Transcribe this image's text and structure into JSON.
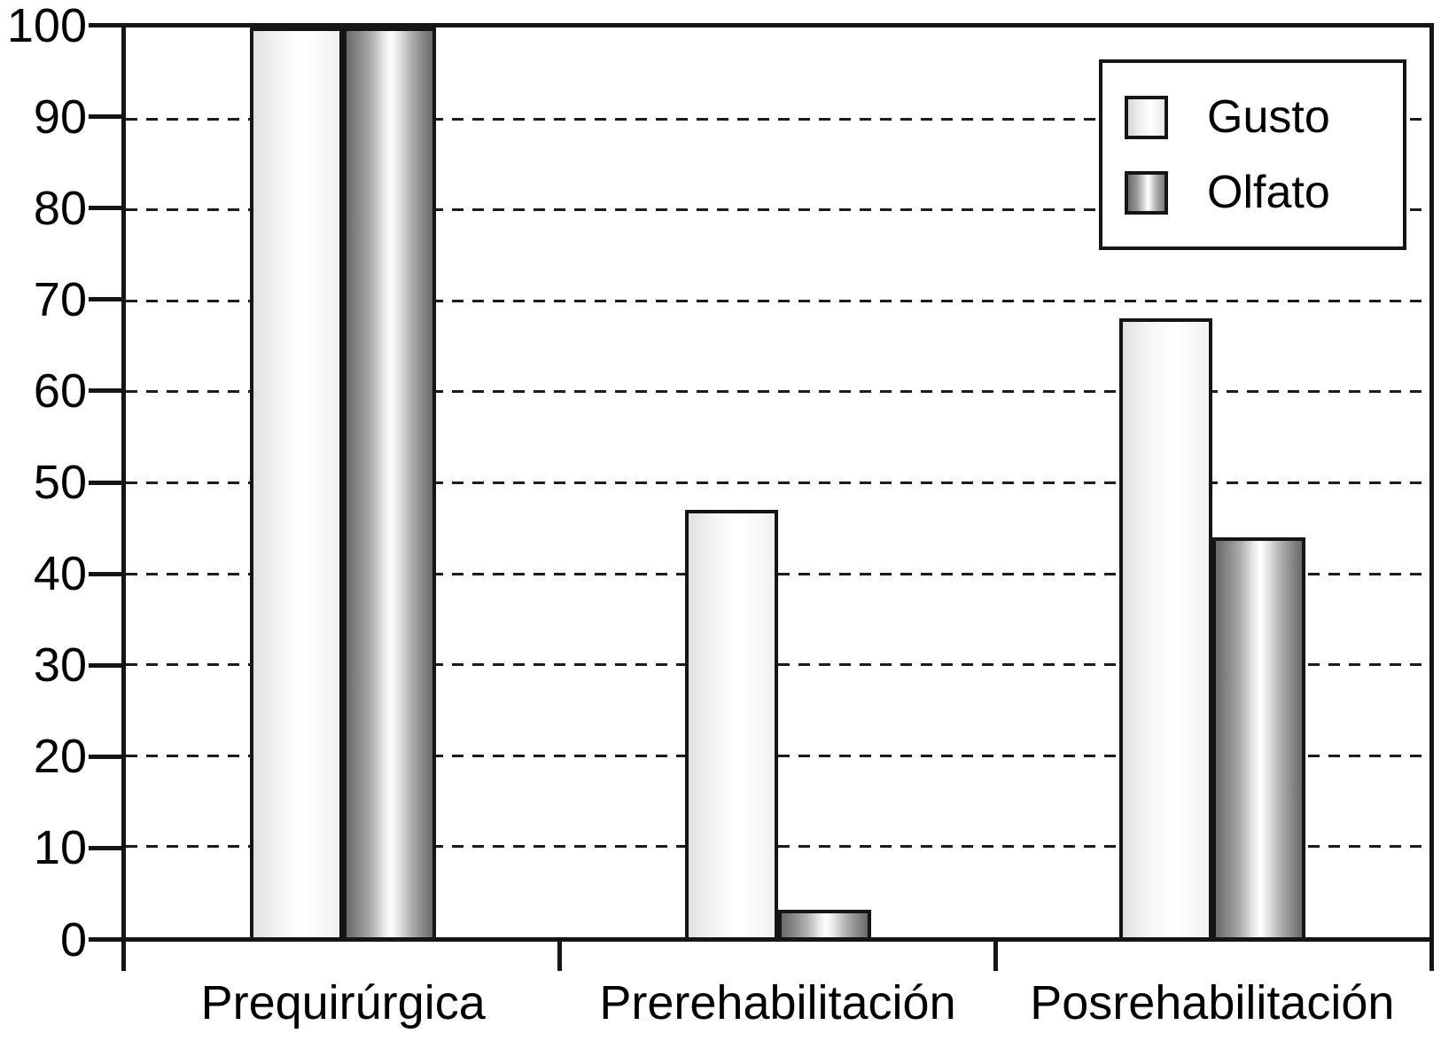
{
  "chart_data": {
    "type": "bar",
    "title": "",
    "xlabel": "",
    "ylabel": "",
    "categories": [
      "Prequirúrgica",
      "Prerehabilitación",
      "Posrehabilitación"
    ],
    "series": [
      {
        "name": "Gusto",
        "values": [
          100,
          47,
          68
        ],
        "edge_color": "#e0e0e0",
        "center_color": "#ffffff"
      },
      {
        "name": "Olfato",
        "values": [
          100,
          3,
          44
        ],
        "edge_color": "#6b6b6b",
        "center_color": "#ffffff"
      }
    ],
    "ylim": [
      0,
      100
    ],
    "ytick_step": 10,
    "ytick_labels": [
      "0",
      "10",
      "20",
      "30",
      "40",
      "50",
      "60",
      "70",
      "80",
      "90",
      "100"
    ],
    "grid": "horizontal dashed, every 10",
    "legend_position": "top-right",
    "outline_color": "#151515",
    "background_color": "#ffffff"
  }
}
